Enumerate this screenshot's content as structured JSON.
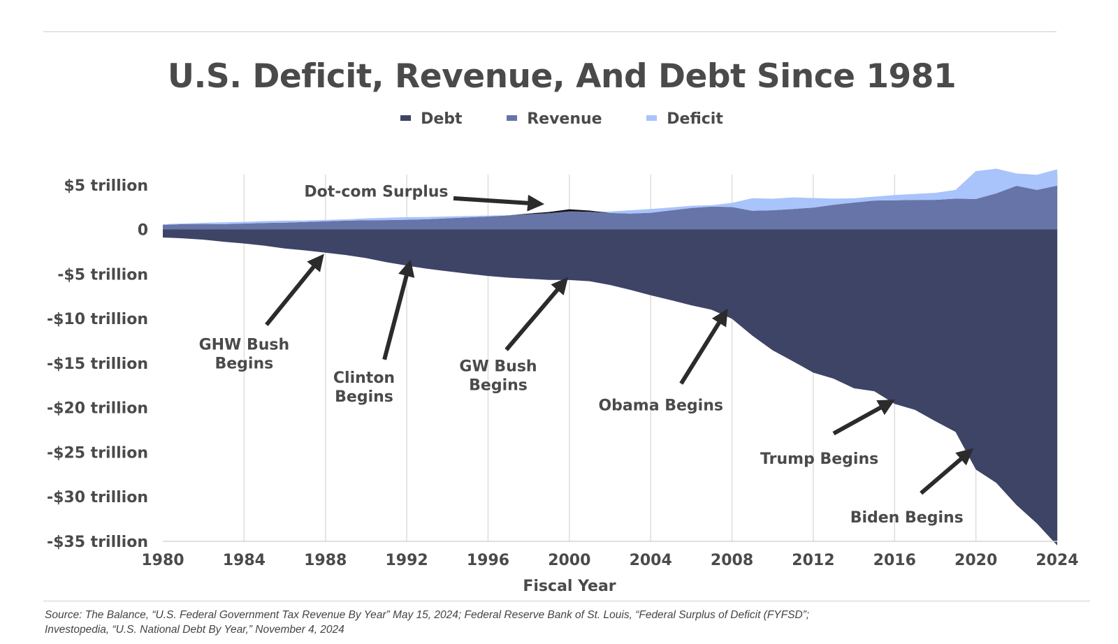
{
  "title": "U.S. Deficit, Revenue, And Debt Since 1981",
  "source": {
    "line1": "Source: The Balance, “U.S. Federal Government Tax Revenue By Year” May 15, 2024; Federal Reserve Bank of St. Louis, “Federal Surplus of Deficit (FYFSD”;",
    "line2": "Investopedia, “U.S. National Debt By Year,” November 4, 2024"
  },
  "colors": {
    "debt": "#3d4466",
    "revenue": "#6674a8",
    "deficit": "#a9c3fb",
    "surplus": "#111111",
    "grid": "#dddddd",
    "arrow": "#2b2b2b"
  },
  "chart_data": {
    "type": "area",
    "title": "U.S. Deficit, Revenue, And Debt Since 1981",
    "xlabel": "Fiscal Year",
    "ylabel": "",
    "xlim": [
      1980,
      2024
    ],
    "ylim": [
      -35,
      6
    ],
    "x_ticks": [
      1980,
      1984,
      1988,
      1992,
      1996,
      2000,
      2004,
      2008,
      2012,
      2016,
      2020,
      2024
    ],
    "x_tick_labels": [
      "1980",
      "1984",
      "1988",
      "1992",
      "1996",
      "2000",
      "2004",
      "2008",
      "2012",
      "2016",
      "2020",
      "2024"
    ],
    "y_ticks": [
      5,
      0,
      -5,
      -10,
      -15,
      -20,
      -25,
      -30,
      -35
    ],
    "y_tick_labels": [
      "$5 trillion",
      "0",
      "-$5 trillion",
      "-$10 trillion",
      "-$15 trillion",
      "-$20 trillion",
      "-$25 trillion",
      "-$30 trillion",
      "-$35 trillion"
    ],
    "units": "trillion USD",
    "grid": "vertical",
    "legend_position": "top-center",
    "x": [
      1980,
      1981,
      1982,
      1983,
      1984,
      1985,
      1986,
      1987,
      1988,
      1989,
      1990,
      1991,
      1992,
      1993,
      1994,
      1995,
      1996,
      1997,
      1998,
      1999,
      2000,
      2001,
      2002,
      2003,
      2004,
      2005,
      2006,
      2007,
      2008,
      2009,
      2010,
      2011,
      2012,
      2013,
      2014,
      2015,
      2016,
      2017,
      2018,
      2019,
      2020,
      2021,
      2022,
      2023,
      2024
    ],
    "series": [
      {
        "name": "Debt",
        "values": [
          -0.9,
          -0.99,
          -1.14,
          -1.38,
          -1.57,
          -1.82,
          -2.13,
          -2.35,
          -2.6,
          -2.87,
          -3.21,
          -3.67,
          -4.06,
          -4.41,
          -4.69,
          -4.97,
          -5.22,
          -5.41,
          -5.53,
          -5.66,
          -5.67,
          -5.81,
          -6.23,
          -6.78,
          -7.38,
          -7.93,
          -8.51,
          -9.01,
          -10.02,
          -11.91,
          -13.56,
          -14.79,
          -16.07,
          -16.74,
          -17.82,
          -18.15,
          -19.57,
          -20.24,
          -21.52,
          -22.72,
          -26.95,
          -28.43,
          -30.93,
          -32.99,
          -35.46
        ]
      },
      {
        "name": "Revenue",
        "values": [
          0.52,
          0.6,
          0.62,
          0.6,
          0.67,
          0.73,
          0.77,
          0.85,
          0.91,
          0.99,
          1.03,
          1.05,
          1.09,
          1.15,
          1.26,
          1.35,
          1.45,
          1.58,
          1.72,
          1.83,
          2.03,
          1.99,
          1.85,
          1.78,
          1.88,
          2.15,
          2.41,
          2.57,
          2.52,
          2.1,
          2.16,
          2.3,
          2.45,
          2.78,
          3.02,
          3.25,
          3.27,
          3.32,
          3.33,
          3.46,
          3.42,
          4.05,
          4.9,
          4.44,
          4.92
        ]
      },
      {
        "name": "Deficit",
        "values": [
          0.07,
          0.08,
          0.13,
          0.21,
          0.19,
          0.21,
          0.22,
          0.15,
          0.16,
          0.15,
          0.22,
          0.27,
          0.29,
          0.26,
          0.2,
          0.16,
          0.11,
          0.02,
          -0.07,
          -0.13,
          -0.24,
          -0.13,
          0.16,
          0.38,
          0.41,
          0.32,
          0.25,
          0.16,
          0.46,
          1.41,
          1.29,
          1.3,
          1.08,
          0.68,
          0.48,
          0.44,
          0.59,
          0.67,
          0.78,
          0.98,
          3.13,
          2.77,
          1.38,
          1.69,
          1.83
        ]
      }
    ],
    "annotations": [
      {
        "label": [
          "Dot-com Surplus"
        ],
        "label_x": 1990.5,
        "label_y": 3.7,
        "arrow_from": [
          1994.3,
          3.5
        ],
        "arrow_to": [
          1998.4,
          2.9
        ],
        "align": "middle"
      },
      {
        "label": [
          "GHW Bush",
          "Begins"
        ],
        "label_x": 1984.0,
        "label_y": -13.5,
        "arrow_from": [
          1985.1,
          -10.7
        ],
        "arrow_to": [
          1987.7,
          -3.4
        ],
        "align": "middle"
      },
      {
        "label": [
          "Clinton",
          "Begins"
        ],
        "label_x": 1989.9,
        "label_y": -17.2,
        "arrow_from": [
          1990.9,
          -14.6
        ],
        "arrow_to": [
          1992.1,
          -4.2
        ],
        "align": "middle"
      },
      {
        "label": [
          "GW Bush",
          "Begins"
        ],
        "label_x": 1996.5,
        "label_y": -15.9,
        "arrow_from": [
          1996.9,
          -13.5
        ],
        "arrow_to": [
          1999.7,
          -6.0
        ],
        "align": "middle"
      },
      {
        "label": [
          "Obama Begins"
        ],
        "label_x": 2004.5,
        "label_y": -20.3,
        "arrow_from": [
          2005.5,
          -17.3
        ],
        "arrow_to": [
          2007.6,
          -9.6
        ],
        "align": "middle"
      },
      {
        "label": [
          "Trump Begins"
        ],
        "label_x": 2012.3,
        "label_y": -26.3,
        "arrow_from": [
          2013.0,
          -22.9
        ],
        "arrow_to": [
          2015.7,
          -19.5
        ],
        "align": "middle"
      },
      {
        "label": [
          "Biden Begins"
        ],
        "label_x": 2016.6,
        "label_y": -32.9,
        "arrow_from": [
          2017.3,
          -29.6
        ],
        "arrow_to": [
          2019.6,
          -25.1
        ],
        "align": "middle"
      }
    ]
  }
}
